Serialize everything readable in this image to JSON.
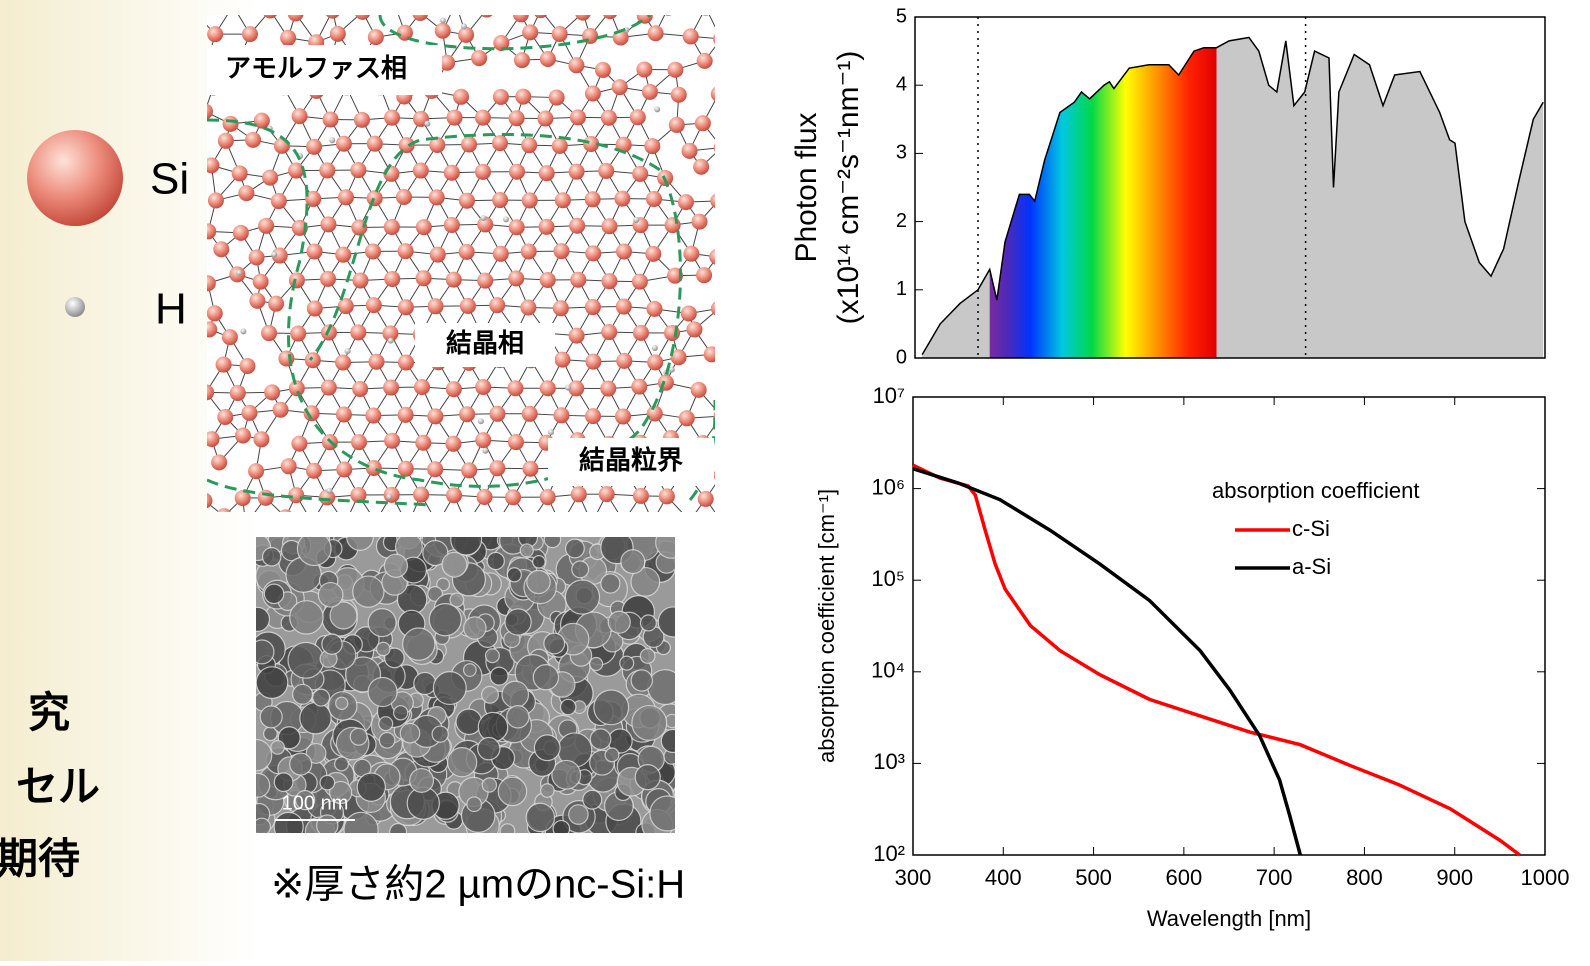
{
  "legend": {
    "si": "Si",
    "h": "H"
  },
  "diagram": {
    "labels": [
      "アモルファス相",
      "結晶相",
      "結晶粒界"
    ]
  },
  "left_text": [
    "究",
    "セル",
    "期待"
  ],
  "tem": {
    "scale": "100 nm",
    "caption": "※厚さ約2 µmのnc-Si:H"
  },
  "chart_data": [
    {
      "type": "area",
      "y_label": [
        "Photon flux",
        "(x10¹⁴ cm⁻²s⁻¹nm⁻¹)"
      ],
      "xlim": [
        300,
        1000
      ],
      "ylim": [
        0,
        5
      ],
      "yticks": [
        0,
        1,
        2,
        3,
        4,
        5
      ],
      "color": "#c8c8c8",
      "vlines": [
        370,
        734
      ],
      "color_band": [
        383,
        635
      ],
      "x": [
        308,
        328,
        350,
        370,
        383,
        391,
        400,
        416,
        427,
        433,
        444,
        461,
        477,
        485,
        494,
        510,
        516,
        521,
        538,
        560,
        582,
        593,
        610,
        621,
        635,
        649,
        671,
        682,
        693,
        702,
        712,
        721,
        733,
        744,
        760,
        765,
        771,
        788,
        805,
        820,
        833,
        861,
        883,
        894,
        900,
        911,
        927,
        940,
        954,
        971,
        987,
        998
      ],
      "values": [
        0.05,
        0.5,
        0.8,
        1.0,
        1.3,
        0.85,
        1.7,
        2.4,
        2.4,
        2.3,
        2.9,
        3.6,
        3.75,
        3.9,
        3.8,
        4.0,
        4.05,
        3.95,
        4.25,
        4.3,
        4.3,
        4.15,
        4.5,
        4.55,
        4.55,
        4.65,
        4.7,
        4.5,
        4.0,
        3.9,
        4.65,
        3.7,
        3.9,
        4.5,
        4.4,
        2.5,
        3.9,
        4.45,
        4.3,
        3.7,
        4.15,
        4.2,
        3.6,
        3.2,
        3.15,
        2.0,
        1.4,
        1.2,
        1.6,
        2.6,
        3.5,
        3.75
      ]
    },
    {
      "type": "line",
      "log_y": true,
      "x_label": "Wavelength [nm]",
      "y_label": "absorption coefficient [cm⁻¹]",
      "legend_title": "absorption coefficient",
      "xlim": [
        300,
        1000
      ],
      "xticks": [
        300,
        400,
        500,
        600,
        700,
        800,
        900,
        1000
      ],
      "ylim": [
        100,
        10000000
      ],
      "yticks": [
        {
          "value": 100,
          "label": "10²"
        },
        {
          "value": 1000,
          "label": "10³"
        },
        {
          "value": 10000,
          "label": "10⁴"
        },
        {
          "value": 100000,
          "label": "10⁵"
        },
        {
          "value": 1000000,
          "label": "10⁶"
        },
        {
          "value": 10000000,
          "label": "10⁷"
        }
      ],
      "series": [
        {
          "name": "c-Si",
          "color": "#ff0000",
          "x": [
            300,
            330,
            361,
            369,
            380,
            391,
            402,
            430,
            463,
            507,
            562,
            618,
            673,
            729,
            784,
            839,
            895,
            950,
            972
          ],
          "values": [
            1800000,
            1300000,
            1070000,
            850000,
            350000,
            150000,
            80000,
            32000,
            17000,
            9300,
            5000,
            3300,
            2200,
            1600,
            950,
            580,
            320,
            145,
            100
          ]
        },
        {
          "name": "a-Si",
          "color": "#000000",
          "x": [
            300,
            350,
            396,
            452,
            507,
            562,
            618,
            651,
            684,
            706,
            717,
            729
          ],
          "values": [
            1650000,
            1150000,
            760000,
            350000,
            150000,
            60000,
            17000,
            6300,
            2000,
            660,
            275,
            100
          ]
        }
      ]
    }
  ]
}
